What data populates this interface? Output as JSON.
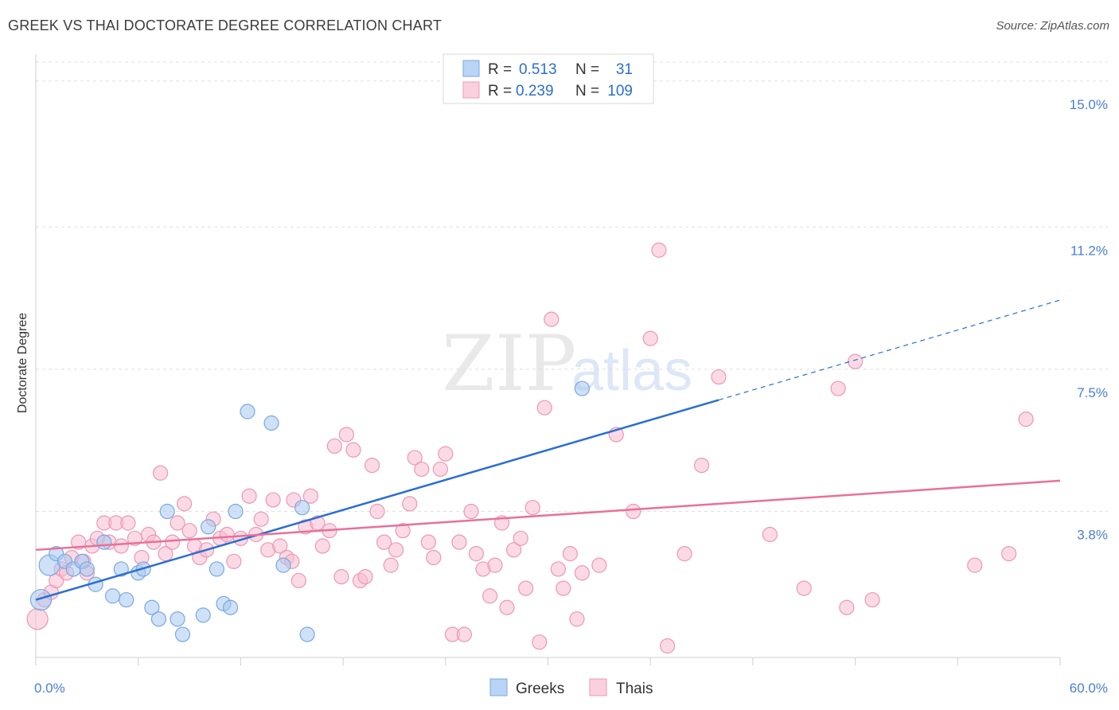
{
  "header": {
    "title": "GREEK VS THAI DOCTORATE DEGREE CORRELATION CHART",
    "source": "Source: ZipAtlas.com"
  },
  "watermark": {
    "zip": "ZIP",
    "atlas": "atlas"
  },
  "legend": {
    "rows": [
      {
        "r_label": "R =",
        "r_value": "0.513",
        "n_label": "N =",
        "n_value": "31"
      },
      {
        "r_label": "R =",
        "r_value": "0.239",
        "n_label": "N =",
        "n_value": "109"
      }
    ]
  },
  "bottom_legend": {
    "greeks": "Greeks",
    "thais": "Thais"
  },
  "colors": {
    "greeks_fill": "#a8c8f0",
    "greeks_stroke": "#7aa8e0",
    "greeks_line": "#2a6fd0",
    "thais_fill": "#f8bcd0",
    "thais_stroke": "#ec98b4",
    "thais_line": "#e8709a",
    "tick_text": "#4a7fd4",
    "grid": "#e0e0e0"
  },
  "chart_data": {
    "type": "scatter",
    "title": "GREEK VS THAI DOCTORATE DEGREE CORRELATION CHART",
    "xlabel": "",
    "ylabel": "Doctorate Degree",
    "xlim": [
      0,
      60
    ],
    "ylim": [
      0,
      15.7
    ],
    "x_tick_labels": [
      "0.0%",
      "60.0%"
    ],
    "y_ticks": [
      3.8,
      7.5,
      11.2,
      15.0
    ],
    "y_tick_labels": [
      "3.8%",
      "7.5%",
      "11.2%",
      "15.0%"
    ],
    "grid": true,
    "legend_position": "top-center",
    "series": [
      {
        "name": "Greeks",
        "r": 0.513,
        "n": 31,
        "trend": {
          "x0": 0,
          "y0": 1.5,
          "x1": 40,
          "y1": 6.7,
          "dashed_to_x": 60,
          "dashed_to_y": 9.3
        },
        "points": [
          [
            0.3,
            1.5
          ],
          [
            0.8,
            2.4
          ],
          [
            1.2,
            2.7
          ],
          [
            1.7,
            2.5
          ],
          [
            2.2,
            2.3
          ],
          [
            2.7,
            2.5
          ],
          [
            3.0,
            2.3
          ],
          [
            3.5,
            1.9
          ],
          [
            4.0,
            3.0
          ],
          [
            4.5,
            1.6
          ],
          [
            5.0,
            2.3
          ],
          [
            5.3,
            1.5
          ],
          [
            6.0,
            2.2
          ],
          [
            6.3,
            2.3
          ],
          [
            6.8,
            1.3
          ],
          [
            7.2,
            1.0
          ],
          [
            7.7,
            3.8
          ],
          [
            8.3,
            1.0
          ],
          [
            8.6,
            0.6
          ],
          [
            9.8,
            1.1
          ],
          [
            10.1,
            3.4
          ],
          [
            10.6,
            2.3
          ],
          [
            11.0,
            1.4
          ],
          [
            11.4,
            1.3
          ],
          [
            11.7,
            3.8
          ],
          [
            12.4,
            6.4
          ],
          [
            13.8,
            6.1
          ],
          [
            14.5,
            2.4
          ],
          [
            15.6,
            3.9
          ],
          [
            15.9,
            0.6
          ],
          [
            32.0,
            7.0
          ]
        ]
      },
      {
        "name": "Thais",
        "r": 0.239,
        "n": 109,
        "trend": {
          "x0": 0,
          "y0": 2.8,
          "x1": 60,
          "y1": 4.6
        },
        "points": [
          [
            0.1,
            1.0
          ],
          [
            0.5,
            1.5
          ],
          [
            0.9,
            1.7
          ],
          [
            1.2,
            2.0
          ],
          [
            1.5,
            2.3
          ],
          [
            1.8,
            2.2
          ],
          [
            2.1,
            2.6
          ],
          [
            2.5,
            3.0
          ],
          [
            2.8,
            2.5
          ],
          [
            3.0,
            2.2
          ],
          [
            3.3,
            2.9
          ],
          [
            3.6,
            3.1
          ],
          [
            4.0,
            3.5
          ],
          [
            4.3,
            3.0
          ],
          [
            4.7,
            3.5
          ],
          [
            5.0,
            2.9
          ],
          [
            5.4,
            3.5
          ],
          [
            5.8,
            3.1
          ],
          [
            6.2,
            2.6
          ],
          [
            6.6,
            3.2
          ],
          [
            6.9,
            3.0
          ],
          [
            7.3,
            4.8
          ],
          [
            7.6,
            2.7
          ],
          [
            8.0,
            3.0
          ],
          [
            8.3,
            3.5
          ],
          [
            8.7,
            4.0
          ],
          [
            9.0,
            3.3
          ],
          [
            9.3,
            2.9
          ],
          [
            9.6,
            2.6
          ],
          [
            10.0,
            2.8
          ],
          [
            10.4,
            3.6
          ],
          [
            10.8,
            3.1
          ],
          [
            11.2,
            3.2
          ],
          [
            11.6,
            2.5
          ],
          [
            12.0,
            3.1
          ],
          [
            12.5,
            4.2
          ],
          [
            12.9,
            3.2
          ],
          [
            13.2,
            3.6
          ],
          [
            13.6,
            2.8
          ],
          [
            13.9,
            4.1
          ],
          [
            14.3,
            2.9
          ],
          [
            14.7,
            2.6
          ],
          [
            15.1,
            4.1
          ],
          [
            15.4,
            2.0
          ],
          [
            15.8,
            3.4
          ],
          [
            16.1,
            4.2
          ],
          [
            16.5,
            3.5
          ],
          [
            16.8,
            2.9
          ],
          [
            17.2,
            3.3
          ],
          [
            17.5,
            5.5
          ],
          [
            17.9,
            2.1
          ],
          [
            18.2,
            5.8
          ],
          [
            18.6,
            5.4
          ],
          [
            19.0,
            2.0
          ],
          [
            19.3,
            2.1
          ],
          [
            19.7,
            5.0
          ],
          [
            20.0,
            3.8
          ],
          [
            20.4,
            3.0
          ],
          [
            20.8,
            2.4
          ],
          [
            21.1,
            2.8
          ],
          [
            21.5,
            3.3
          ],
          [
            21.9,
            4.0
          ],
          [
            22.2,
            5.2
          ],
          [
            22.6,
            4.9
          ],
          [
            23.0,
            3.0
          ],
          [
            23.3,
            2.6
          ],
          [
            23.7,
            4.9
          ],
          [
            24.0,
            5.3
          ],
          [
            24.4,
            0.6
          ],
          [
            24.8,
            3.0
          ],
          [
            25.1,
            0.6
          ],
          [
            25.5,
            3.8
          ],
          [
            25.8,
            2.7
          ],
          [
            26.2,
            2.3
          ],
          [
            26.6,
            1.6
          ],
          [
            26.9,
            2.4
          ],
          [
            27.3,
            3.5
          ],
          [
            27.6,
            1.3
          ],
          [
            28.0,
            2.8
          ],
          [
            28.4,
            3.1
          ],
          [
            28.7,
            1.8
          ],
          [
            29.1,
            3.9
          ],
          [
            29.5,
            0.4
          ],
          [
            29.8,
            6.5
          ],
          [
            30.2,
            8.8
          ],
          [
            30.6,
            2.3
          ],
          [
            30.9,
            1.8
          ],
          [
            31.3,
            2.7
          ],
          [
            31.7,
            1.0
          ],
          [
            32.0,
            2.2
          ],
          [
            33.0,
            2.4
          ],
          [
            34.0,
            5.8
          ],
          [
            35.0,
            3.8
          ],
          [
            36.0,
            8.3
          ],
          [
            36.5,
            10.6
          ],
          [
            37.0,
            0.3
          ],
          [
            38.0,
            2.7
          ],
          [
            39.0,
            5.0
          ],
          [
            40.0,
            7.3
          ],
          [
            43.0,
            3.2
          ],
          [
            45.0,
            1.8
          ],
          [
            47.0,
            7.0
          ],
          [
            48.0,
            7.7
          ],
          [
            49.0,
            1.5
          ],
          [
            55.0,
            2.4
          ],
          [
            57.0,
            2.7
          ],
          [
            58.0,
            6.2
          ],
          [
            47.5,
            1.3
          ],
          [
            15.0,
            2.5
          ]
        ]
      }
    ]
  }
}
